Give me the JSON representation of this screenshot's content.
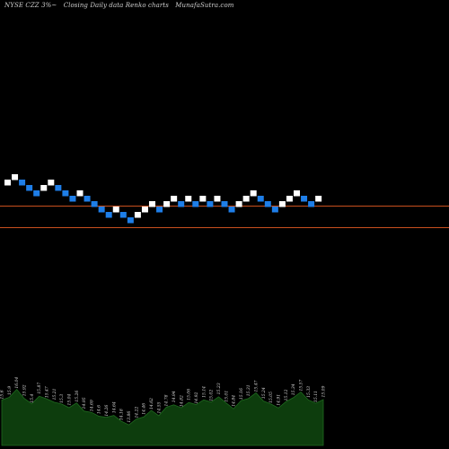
{
  "header": {
    "symbol": "NYSE CZZ 3%~",
    "chart_kind": "Closing Daily data Renko charts",
    "site": "MunafaSutra.com"
  },
  "colors": {
    "up_brick": "#ffffff",
    "down_brick": "#1e7ee8",
    "ref_line": "#c8501e",
    "volume_fill": "#0d3d0d",
    "volume_stroke": "#1f6a1f"
  },
  "chart_data": {
    "type": "renko",
    "grid": false,
    "bricks": [
      {
        "d": "up",
        "l": 0
      },
      {
        "d": "up",
        "l": 1
      },
      {
        "d": "down",
        "l": 0
      },
      {
        "d": "down",
        "l": -1
      },
      {
        "d": "down",
        "l": -2
      },
      {
        "d": "up",
        "l": -1
      },
      {
        "d": "up",
        "l": 0
      },
      {
        "d": "down",
        "l": -1
      },
      {
        "d": "down",
        "l": -2
      },
      {
        "d": "down",
        "l": -3
      },
      {
        "d": "up",
        "l": -2
      },
      {
        "d": "down",
        "l": -3
      },
      {
        "d": "down",
        "l": -4
      },
      {
        "d": "down",
        "l": -5
      },
      {
        "d": "down",
        "l": -6
      },
      {
        "d": "up",
        "l": -5
      },
      {
        "d": "down",
        "l": -6
      },
      {
        "d": "down",
        "l": -7
      },
      {
        "d": "up",
        "l": -6
      },
      {
        "d": "up",
        "l": -5
      },
      {
        "d": "up",
        "l": -4
      },
      {
        "d": "down",
        "l": -5
      },
      {
        "d": "up",
        "l": -4
      },
      {
        "d": "up",
        "l": -3
      },
      {
        "d": "down",
        "l": -4
      },
      {
        "d": "up",
        "l": -3
      },
      {
        "d": "down",
        "l": -4
      },
      {
        "d": "up",
        "l": -3
      },
      {
        "d": "down",
        "l": -4
      },
      {
        "d": "up",
        "l": -3
      },
      {
        "d": "down",
        "l": -4
      },
      {
        "d": "down",
        "l": -5
      },
      {
        "d": "up",
        "l": -4
      },
      {
        "d": "up",
        "l": -3
      },
      {
        "d": "up",
        "l": -2
      },
      {
        "d": "down",
        "l": -3
      },
      {
        "d": "down",
        "l": -4
      },
      {
        "d": "down",
        "l": -5
      },
      {
        "d": "up",
        "l": -4
      },
      {
        "d": "up",
        "l": -3
      },
      {
        "d": "up",
        "l": -2
      },
      {
        "d": "down",
        "l": -3
      },
      {
        "d": "down",
        "l": -4
      },
      {
        "d": "up",
        "l": -3
      }
    ],
    "reference_lines": [
      "upper",
      "lower"
    ],
    "volume": [
      {
        "v": 15.8,
        "label": "15.6"
      },
      {
        "v": 17.2,
        "label": "15.9"
      },
      {
        "v": 19.5,
        "label": "16.04"
      },
      {
        "v": 16.8,
        "label": "15.92"
      },
      {
        "v": 14.5,
        "label": "15.4"
      },
      {
        "v": 17.6,
        "label": "15.87"
      },
      {
        "v": 16.2,
        "label": "15.47"
      },
      {
        "v": 15.5,
        "label": "15.21"
      },
      {
        "v": 14.4,
        "label": "15.3"
      },
      {
        "v": 13.6,
        "label": "15.04"
      },
      {
        "v": 14.8,
        "label": "15.26"
      },
      {
        "v": 12.4,
        "label": "14.95"
      },
      {
        "v": 11.5,
        "label": "14.69"
      },
      {
        "v": 10.6,
        "label": "14.6"
      },
      {
        "v": 9.8,
        "label": "14.26"
      },
      {
        "v": 10.9,
        "label": "14.64"
      },
      {
        "v": 8.4,
        "label": "14.18"
      },
      {
        "v": 7.6,
        "label": "13.86"
      },
      {
        "v": 9.2,
        "label": "14.22"
      },
      {
        "v": 10.4,
        "label": "14.46"
      },
      {
        "v": 12.2,
        "label": "14.62"
      },
      {
        "v": 10.8,
        "label": "14.55"
      },
      {
        "v": 13.3,
        "label": "14.78"
      },
      {
        "v": 14.6,
        "label": "14.94"
      },
      {
        "v": 13.1,
        "label": "14.82"
      },
      {
        "v": 15.4,
        "label": "15.06"
      },
      {
        "v": 14.2,
        "label": "14.92"
      },
      {
        "v": 16.3,
        "label": "15.14"
      },
      {
        "v": 15.1,
        "label": "15.02"
      },
      {
        "v": 17.4,
        "label": "15.23"
      },
      {
        "v": 14.8,
        "label": "15.01"
      },
      {
        "v": 13.2,
        "label": "14.84"
      },
      {
        "v": 15.6,
        "label": "15.16"
      },
      {
        "v": 16.8,
        "label": "15.31"
      },
      {
        "v": 18.3,
        "label": "15.47"
      },
      {
        "v": 15.9,
        "label": "15.24"
      },
      {
        "v": 14.4,
        "label": "15.05"
      },
      {
        "v": 13.5,
        "label": "14.91"
      },
      {
        "v": 15.2,
        "label": "15.12"
      },
      {
        "v": 17.1,
        "label": "15.34"
      },
      {
        "v": 18.6,
        "label": "15.57"
      },
      {
        "v": 16.3,
        "label": "15.33"
      },
      {
        "v": 14.7,
        "label": "15.11"
      },
      {
        "v": 16.4,
        "label": "15.09"
      }
    ]
  }
}
